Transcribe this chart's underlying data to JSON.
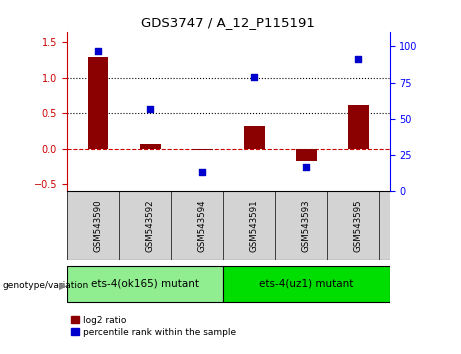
{
  "title": "GDS3747 / A_12_P115191",
  "samples": [
    "GSM543590",
    "GSM543592",
    "GSM543594",
    "GSM543591",
    "GSM543593",
    "GSM543595"
  ],
  "log2_ratio": [
    1.3,
    0.07,
    -0.02,
    0.32,
    -0.18,
    0.62
  ],
  "percentile_rank": [
    97,
    57,
    13,
    79,
    17,
    91
  ],
  "bar_color": "#8B0000",
  "dot_color": "#0000CC",
  "groups": [
    {
      "label": "ets-4(ok165) mutant",
      "indices": [
        0,
        1,
        2
      ],
      "color": "#90EE90"
    },
    {
      "label": "ets-4(uz1) mutant",
      "indices": [
        3,
        4,
        5
      ],
      "color": "#00DD00"
    }
  ],
  "ylim_left": [
    -0.6,
    1.65
  ],
  "ylim_right": [
    0,
    110
  ],
  "yticks_left": [
    -0.5,
    0.0,
    0.5,
    1.0,
    1.5
  ],
  "yticks_right": [
    0,
    25,
    50,
    75,
    100
  ],
  "hlines": [
    0.0,
    0.5,
    1.0
  ],
  "hline_styles": [
    "dashed",
    "dotted",
    "dotted"
  ],
  "hline_colors": [
    "#CC0000",
    "#000000",
    "#000000"
  ],
  "bg_color_plot": "#ffffff",
  "bg_color_label": "#d3d3d3",
  "genotype_label": "genotype/variation"
}
